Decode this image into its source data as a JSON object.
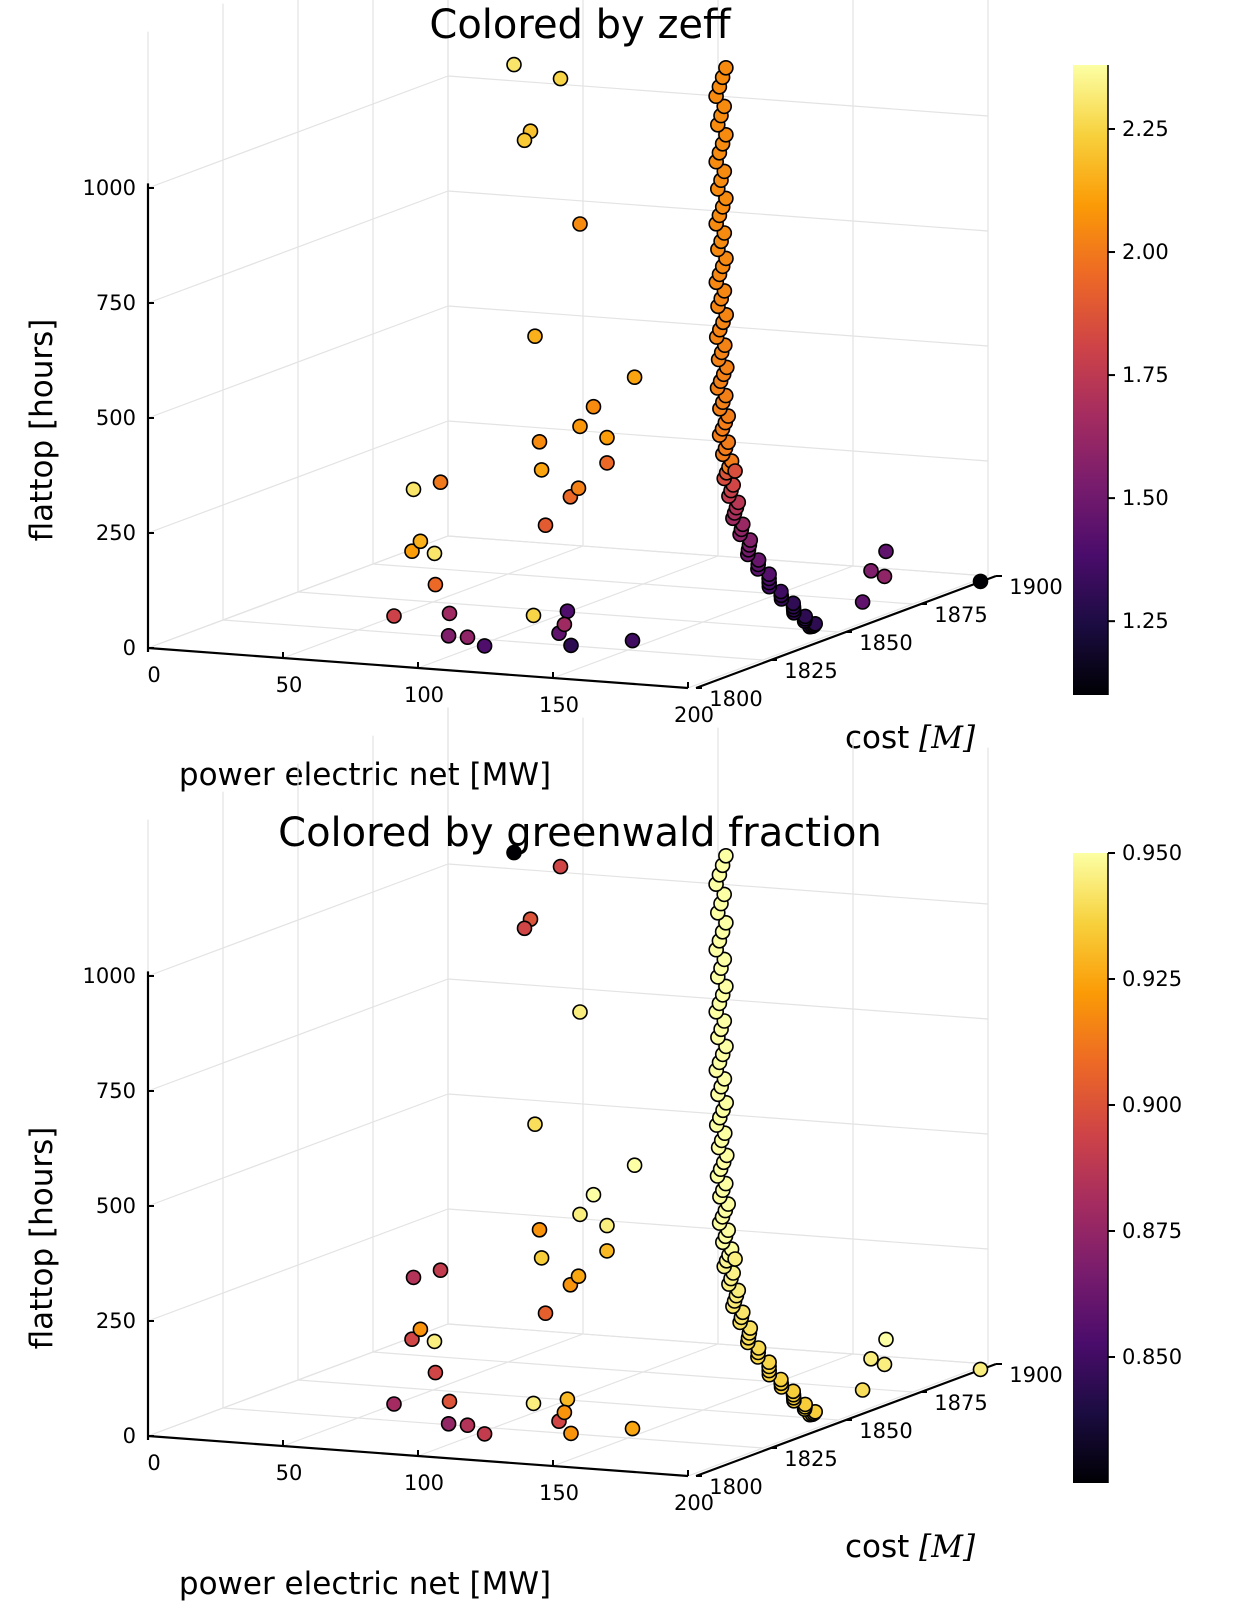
{
  "colormap": {
    "name": "inferno",
    "stops": [
      "#000004",
      "#1b0c41",
      "#4a0c6b",
      "#781c6d",
      "#a52c60",
      "#cf4446",
      "#ed6925",
      "#fb9b06",
      "#f7d13d",
      "#fcffa4"
    ]
  },
  "point_stroke_color": "#000000",
  "chart_data": [
    {
      "type": "scatter3d",
      "title": "Colored by zeff",
      "xlabel": "power electric net [MW]",
      "ylabel": "cost $[M]",
      "ylabel_text": "cost ",
      "ylabel_math": "[M]",
      "zlabel": "flattop [hours]",
      "xlim": [
        0,
        200
      ],
      "ylim": [
        1800,
        1900
      ],
      "zlim": [
        0,
        1000
      ],
      "xticks": [
        "0",
        "50",
        "100",
        "150",
        "200"
      ],
      "yticks": [
        "1800",
        "1825",
        "1850",
        "1875",
        "1900"
      ],
      "zticks": [
        "0",
        "250",
        "500",
        "750",
        "1000"
      ],
      "colorbar": {
        "range": [
          1.1,
          2.38
        ],
        "ticks": [
          {
            "value": 1.25,
            "label": "1.25"
          },
          {
            "value": 1.5,
            "label": "1.50"
          },
          {
            "value": 1.75,
            "label": "1.75"
          },
          {
            "value": 2.0,
            "label": "2.00"
          },
          {
            "value": 2.25,
            "label": "2.25"
          }
        ]
      },
      "grid": true,
      "points": [
        {
          "x": 30,
          "y": 1895,
          "z": 1050,
          "c": 2.3
        },
        {
          "x": 75,
          "y": 1870,
          "z": 1100,
          "c": 2.25
        },
        {
          "x": 75,
          "y": 1860,
          "z": 1010,
          "c": 2.2
        },
        {
          "x": 75,
          "y": 1858,
          "z": 995,
          "c": 2.22
        },
        {
          "x": 110,
          "y": 1845,
          "z": 860,
          "c": 2.05
        },
        {
          "x": 90,
          "y": 1848,
          "z": 600,
          "c": 2.15
        },
        {
          "x": 65,
          "y": 1830,
          "z": 300,
          "c": 2.3
        },
        {
          "x": 75,
          "y": 1830,
          "z": 320,
          "c": 2.0
        },
        {
          "x": 95,
          "y": 1845,
          "z": 380,
          "c": 2.05
        },
        {
          "x": 98,
          "y": 1843,
          "z": 325,
          "c": 2.12
        },
        {
          "x": 115,
          "y": 1845,
          "z": 465,
          "c": 2.05
        },
        {
          "x": 110,
          "y": 1845,
          "z": 420,
          "c": 2.08
        },
        {
          "x": 120,
          "y": 1845,
          "z": 400,
          "c": 2.1
        },
        {
          "x": 128,
          "y": 1847,
          "z": 530,
          "c": 2.12
        },
        {
          "x": 120,
          "y": 1845,
          "z": 345,
          "c": 1.95
        },
        {
          "x": 112,
          "y": 1840,
          "z": 280,
          "c": 1.95
        },
        {
          "x": 115,
          "y": 1840,
          "z": 300,
          "c": 2.02
        },
        {
          "x": 105,
          "y": 1838,
          "z": 220,
          "c": 1.9
        },
        {
          "x": 70,
          "y": 1825,
          "z": 180,
          "c": 2.1
        },
        {
          "x": 72,
          "y": 1826,
          "z": 200,
          "c": 2.15
        },
        {
          "x": 75,
          "y": 1828,
          "z": 170,
          "c": 2.3
        },
        {
          "x": 82,
          "y": 1822,
          "z": 120,
          "c": 1.95
        },
        {
          "x": 80,
          "y": 1810,
          "z": 80,
          "c": 1.8
        },
        {
          "x": 95,
          "y": 1815,
          "z": 80,
          "c": 1.65
        },
        {
          "x": 98,
          "y": 1812,
          "z": 40,
          "c": 1.55
        },
        {
          "x": 105,
          "y": 1812,
          "z": 40,
          "c": 1.6
        },
        {
          "x": 108,
          "y": 1815,
          "z": 15,
          "c": 1.4
        },
        {
          "x": 115,
          "y": 1825,
          "z": 60,
          "c": 2.25
        },
        {
          "x": 122,
          "y": 1830,
          "z": 60,
          "c": 1.4
        },
        {
          "x": 130,
          "y": 1820,
          "z": 40,
          "c": 1.45
        },
        {
          "x": 132,
          "y": 1820,
          "z": 60,
          "c": 1.65
        },
        {
          "x": 140,
          "y": 1815,
          "z": 30,
          "c": 1.3
        },
        {
          "x": 155,
          "y": 1822,
          "z": 30,
          "c": 1.35
        },
        {
          "x": 153,
          "y": 1858,
          "z": 310,
          "c": 1.85
        },
        {
          "x": 190,
          "y": 1870,
          "z": 80,
          "c": 1.55
        },
        {
          "x": 190,
          "y": 1875,
          "z": 110,
          "c": 1.45
        },
        {
          "x": 195,
          "y": 1870,
          "z": 70,
          "c": 1.6
        },
        {
          "x": 198,
          "y": 1860,
          "z": 40,
          "c": 1.45
        },
        {
          "x": 225,
          "y": 1875,
          "z": 60,
          "c": 1.1
        }
      ],
      "spine": {
        "x0": 140,
        "y0": 1865,
        "x1": 193,
        "y1": 1850,
        "zmin": 5,
        "zmax": 1340,
        "n": 96,
        "ctop": 2.05,
        "cmid": 1.9,
        "cbottom": 1.3
      }
    },
    {
      "type": "scatter3d",
      "title": "Colored by greenwald fraction",
      "xlabel": "power electric net [MW]",
      "ylabel": "cost $[M]",
      "ylabel_text": "cost ",
      "ylabel_math": "[M]",
      "zlabel": "flattop [hours]",
      "xlim": [
        0,
        200
      ],
      "ylim": [
        1800,
        1900
      ],
      "zlim": [
        0,
        1000
      ],
      "xticks": [
        "0",
        "50",
        "100",
        "150",
        "200"
      ],
      "yticks": [
        "1800",
        "1825",
        "1850",
        "1875",
        "1900"
      ],
      "zticks": [
        "0",
        "250",
        "500",
        "750",
        "1000"
      ],
      "colorbar": {
        "range": [
          0.825,
          0.95
        ],
        "ticks": [
          {
            "value": 0.85,
            "label": "0.850"
          },
          {
            "value": 0.875,
            "label": "0.875"
          },
          {
            "value": 0.9,
            "label": "0.900"
          },
          {
            "value": 0.925,
            "label": "0.925"
          },
          {
            "value": 0.95,
            "label": "0.950"
          }
        ]
      },
      "grid": true,
      "points": [
        {
          "x": 30,
          "y": 1895,
          "z": 1050,
          "c": 0.825
        },
        {
          "x": 75,
          "y": 1870,
          "z": 1100,
          "c": 0.895
        },
        {
          "x": 75,
          "y": 1860,
          "z": 1010,
          "c": 0.9
        },
        {
          "x": 75,
          "y": 1858,
          "z": 995,
          "c": 0.895
        },
        {
          "x": 110,
          "y": 1845,
          "z": 860,
          "c": 0.945
        },
        {
          "x": 90,
          "y": 1848,
          "z": 600,
          "c": 0.94
        },
        {
          "x": 65,
          "y": 1830,
          "z": 300,
          "c": 0.885
        },
        {
          "x": 75,
          "y": 1830,
          "z": 320,
          "c": 0.89
        },
        {
          "x": 95,
          "y": 1845,
          "z": 380,
          "c": 0.92
        },
        {
          "x": 98,
          "y": 1843,
          "z": 325,
          "c": 0.935
        },
        {
          "x": 115,
          "y": 1845,
          "z": 465,
          "c": 0.95
        },
        {
          "x": 110,
          "y": 1845,
          "z": 420,
          "c": 0.945
        },
        {
          "x": 120,
          "y": 1845,
          "z": 400,
          "c": 0.945
        },
        {
          "x": 128,
          "y": 1847,
          "z": 530,
          "c": 0.95
        },
        {
          "x": 120,
          "y": 1845,
          "z": 345,
          "c": 0.93
        },
        {
          "x": 112,
          "y": 1840,
          "z": 280,
          "c": 0.92
        },
        {
          "x": 115,
          "y": 1840,
          "z": 300,
          "c": 0.925
        },
        {
          "x": 105,
          "y": 1838,
          "z": 220,
          "c": 0.905
        },
        {
          "x": 70,
          "y": 1825,
          "z": 180,
          "c": 0.895
        },
        {
          "x": 72,
          "y": 1826,
          "z": 200,
          "c": 0.92
        },
        {
          "x": 75,
          "y": 1828,
          "z": 170,
          "c": 0.945
        },
        {
          "x": 82,
          "y": 1822,
          "z": 120,
          "c": 0.895
        },
        {
          "x": 80,
          "y": 1810,
          "z": 80,
          "c": 0.88
        },
        {
          "x": 95,
          "y": 1815,
          "z": 80,
          "c": 0.9
        },
        {
          "x": 98,
          "y": 1812,
          "z": 40,
          "c": 0.875
        },
        {
          "x": 105,
          "y": 1812,
          "z": 40,
          "c": 0.885
        },
        {
          "x": 108,
          "y": 1815,
          "z": 15,
          "c": 0.89
        },
        {
          "x": 115,
          "y": 1825,
          "z": 60,
          "c": 0.945
        },
        {
          "x": 122,
          "y": 1830,
          "z": 60,
          "c": 0.93
        },
        {
          "x": 130,
          "y": 1820,
          "z": 40,
          "c": 0.895
        },
        {
          "x": 132,
          "y": 1820,
          "z": 60,
          "c": 0.92
        },
        {
          "x": 140,
          "y": 1815,
          "z": 30,
          "c": 0.92
        },
        {
          "x": 155,
          "y": 1822,
          "z": 30,
          "c": 0.925
        },
        {
          "x": 153,
          "y": 1858,
          "z": 310,
          "c": 0.945
        },
        {
          "x": 190,
          "y": 1870,
          "z": 80,
          "c": 0.945
        },
        {
          "x": 190,
          "y": 1875,
          "z": 110,
          "c": 0.95
        },
        {
          "x": 195,
          "y": 1870,
          "z": 70,
          "c": 0.945
        },
        {
          "x": 198,
          "y": 1860,
          "z": 40,
          "c": 0.94
        },
        {
          "x": 225,
          "y": 1875,
          "z": 60,
          "c": 0.945
        }
      ],
      "spine": {
        "x0": 140,
        "y0": 1865,
        "x1": 193,
        "y1": 1850,
        "zmin": 5,
        "zmax": 1340,
        "n": 96,
        "ctop": 0.95,
        "cmid": 0.948,
        "cbottom": 0.935
      }
    }
  ]
}
